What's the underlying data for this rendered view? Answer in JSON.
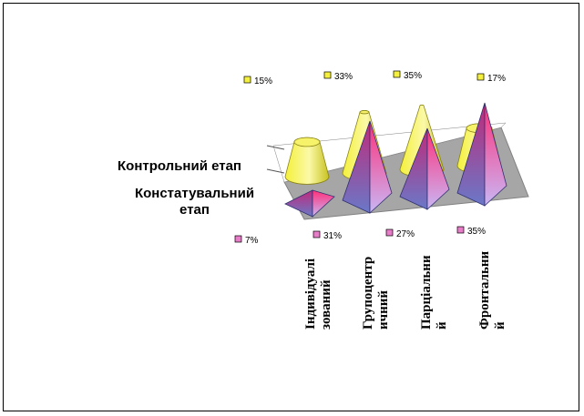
{
  "chart_data": {
    "type": "3d-column",
    "series": [
      {
        "name": "Контрольний етап",
        "shape": "cone-frustum",
        "color": "#f2ee3a",
        "values": [
          15,
          33,
          35,
          17
        ],
        "labels": [
          "15%",
          "33%",
          "35%",
          "17%"
        ]
      },
      {
        "name": "Констатувальний етап",
        "shape": "pyramid",
        "color": "#e8308a",
        "values": [
          7,
          31,
          27,
          35
        ],
        "labels": [
          "7%",
          "31%",
          "27%",
          "35%"
        ]
      }
    ],
    "categories": [
      "Індивідуалі зований",
      "Групоцентр ичний",
      "Парціальни й",
      "Фронтальни й"
    ],
    "category_lines": [
      [
        "Індивідуалі",
        "зований"
      ],
      [
        "Групоцентр",
        "ичний"
      ],
      [
        "Парціальни",
        "й"
      ],
      [
        "Фронтальни",
        "й"
      ]
    ],
    "series_label_lines": [
      [
        "Контрольний етап"
      ],
      [
        "Констатувальний",
        "етап"
      ]
    ],
    "ylim": [
      0,
      40
    ],
    "grid": true,
    "legend": "none",
    "colors": {
      "floor": "#a6a6a6",
      "back_wall": "#ffffff",
      "marker_yellow": "#f5f03c",
      "marker_pink": "#e87cc8"
    }
  }
}
